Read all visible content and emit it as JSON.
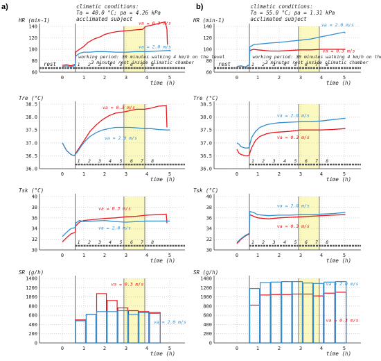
{
  "chart_data": [
    {
      "type": "line",
      "panel": "a",
      "title": "HR (min-1)",
      "ylabel": "HR (min-1)",
      "xlabel": "time (h)",
      "ylim": [
        60,
        140
      ],
      "yticks": [
        60,
        80,
        100,
        120,
        140
      ],
      "xlim": [
        0,
        5
      ],
      "xticks": [
        0,
        1,
        2,
        3,
        4,
        5
      ],
      "conditions": [
        "climatic conditions:",
        "Ta = 40.0 °C;  pa = 4.26 kPa",
        "acclimated subject"
      ],
      "period_note": [
        "working period: 30 minutes walking 4 km/h on the level",
        "3 minutes rest inside climatic chamber"
      ],
      "rest_label": "rest",
      "period_numbers": [
        "1",
        "2",
        "3",
        "4",
        "5",
        "6",
        "7",
        "8"
      ],
      "highlight": [
        2.9,
        3.9
      ],
      "series": [
        {
          "name": "va = 0.3 m/s",
          "color": "#e8141b",
          "x": [
            0,
            0.2,
            0.4,
            0.6,
            0.62,
            0.8,
            1.0,
            1.2,
            1.5,
            1.8,
            2.0,
            2.3,
            2.6,
            2.9,
            3.2,
            3.5,
            3.8,
            3.95,
            4.2,
            4.5,
            4.8,
            4.88,
            4.9
          ],
          "y": [
            72,
            73,
            71,
            74,
            95,
            100,
            105,
            112,
            118,
            122,
            126,
            129,
            131,
            132,
            133,
            134,
            135,
            140,
            142,
            145,
            148,
            135,
            108
          ]
        },
        {
          "name": "va = 2.0 m/s",
          "color": "#2f8fcf",
          "x": [
            0,
            0.2,
            0.4,
            0.6,
            0.62,
            0.8,
            1.0,
            1.3,
            1.6,
            2.0,
            2.5,
            3.0,
            3.5,
            4.0,
            4.5,
            5.0,
            5.05
          ],
          "y": [
            70,
            71,
            69,
            72,
            88,
            93,
            95,
            95,
            96,
            96,
            95,
            95,
            96,
            96,
            97,
            98,
            97
          ]
        }
      ]
    },
    {
      "type": "line",
      "panel": "a",
      "title": "Tre (°C)",
      "ylabel": "Tre (°C)",
      "xlabel": "time (h)",
      "ylim": [
        36.0,
        38.5
      ],
      "yticks": [
        36.0,
        36.5,
        37.0,
        37.5,
        38.0,
        38.5
      ],
      "xlim": [
        0,
        5
      ],
      "xticks": [
        0,
        1,
        2,
        3,
        4,
        5
      ],
      "period_numbers": [
        "1",
        "2",
        "3",
        "4",
        "5",
        "6",
        "7",
        "8"
      ],
      "highlight": [
        2.9,
        3.9
      ],
      "series": [
        {
          "name": "va = 0.3 m/s",
          "color": "#e8141b",
          "x": [
            0,
            0.1,
            0.2,
            0.4,
            0.55,
            0.6,
            0.7,
            0.9,
            1.1,
            1.3,
            1.6,
            1.9,
            2.2,
            2.5,
            2.9,
            3.2,
            3.5,
            3.9,
            4.2,
            4.5,
            4.85,
            4.88
          ],
          "y": [
            37.0,
            36.85,
            36.7,
            36.55,
            36.5,
            36.55,
            36.7,
            36.95,
            37.2,
            37.45,
            37.7,
            37.9,
            38.05,
            38.15,
            38.2,
            38.25,
            38.3,
            38.3,
            38.35,
            38.42,
            38.45,
            37.6
          ]
        },
        {
          "name": "va = 2.0 m/s",
          "color": "#2f8fcf",
          "x": [
            0,
            0.1,
            0.2,
            0.4,
            0.55,
            0.6,
            0.7,
            0.9,
            1.1,
            1.3,
            1.6,
            1.9,
            2.2,
            2.5,
            2.9,
            3.2,
            3.5,
            3.9,
            4.2,
            4.5,
            4.85,
            5.0
          ],
          "y": [
            37.0,
            36.85,
            36.7,
            36.55,
            36.5,
            36.55,
            36.65,
            36.9,
            37.1,
            37.25,
            37.4,
            37.5,
            37.55,
            37.6,
            37.6,
            37.6,
            37.58,
            37.55,
            37.55,
            37.52,
            37.5,
            37.5
          ]
        }
      ]
    },
    {
      "type": "line",
      "panel": "a",
      "title": "Tsk (°C)",
      "ylabel": "Tsk (°C)",
      "xlabel": "time (h)",
      "ylim": [
        30,
        40
      ],
      "yticks": [
        30,
        32,
        34,
        36,
        38,
        40
      ],
      "xlim": [
        0,
        5
      ],
      "xticks": [
        0,
        1,
        2,
        3,
        4,
        5
      ],
      "period_numbers": [
        "1",
        "2",
        "3",
        "4",
        "5",
        "6",
        "7",
        "8"
      ],
      "highlight": [
        2.9,
        3.9
      ],
      "series": [
        {
          "name": "va = 0.3 m/s",
          "color": "#e8141b",
          "x": [
            0,
            0.2,
            0.4,
            0.6,
            0.62,
            0.8,
            1.0,
            1.5,
            2.0,
            2.5,
            3.0,
            3.5,
            4.0,
            4.5,
            4.85,
            4.88
          ],
          "y": [
            31.5,
            32.3,
            33.0,
            33.3,
            34.5,
            35.2,
            35.5,
            35.7,
            35.9,
            36.0,
            36.2,
            36.3,
            36.5,
            36.6,
            36.7,
            35.0
          ]
        },
        {
          "name": "va = 2.0 m/s",
          "color": "#2f8fcf",
          "x": [
            0,
            0.2,
            0.4,
            0.6,
            0.62,
            0.8,
            1.0,
            1.5,
            2.0,
            2.5,
            3.0,
            3.5,
            4.0,
            4.5,
            5.0
          ],
          "y": [
            32.5,
            33.3,
            34.0,
            34.2,
            35.0,
            35.5,
            35.3,
            35.4,
            35.5,
            35.3,
            35.2,
            35.3,
            35.4,
            35.4,
            35.4
          ]
        }
      ]
    },
    {
      "type": "bar",
      "panel": "a",
      "title": "SR (g/h)",
      "ylabel": "SR (g/h)",
      "xlabel": "time (h)",
      "ylim": [
        0,
        1400
      ],
      "yticks": [
        0,
        200,
        400,
        600,
        800,
        1000,
        1200,
        1400
      ],
      "xlim": [
        0,
        5
      ],
      "xticks": [
        0,
        1,
        2,
        3,
        4,
        5
      ],
      "highlight": [
        2.9,
        3.9
      ],
      "bins": [
        [
          0.6,
          1.1
        ],
        [
          1.1,
          1.6
        ],
        [
          1.6,
          2.1
        ],
        [
          2.1,
          2.6
        ],
        [
          2.6,
          3.1
        ],
        [
          3.1,
          3.6
        ],
        [
          3.6,
          4.1
        ],
        [
          4.1,
          4.6
        ]
      ],
      "series": [
        {
          "name": "va = 0.3 m/s",
          "color": "#e8141b",
          "values": [
            500,
            620,
            1070,
            920,
            760,
            700,
            680,
            660
          ]
        },
        {
          "name": "va = 2.0 m/s",
          "color": "#2f8fcf",
          "values": [
            480,
            620,
            680,
            680,
            700,
            620,
            660,
            640
          ]
        }
      ]
    },
    {
      "type": "line",
      "panel": "b",
      "title": "HR (min-1)",
      "ylabel": "HR (min-1)",
      "xlabel": "time (h)",
      "ylim": [
        60,
        140
      ],
      "yticks": [
        60,
        80,
        100,
        120,
        140
      ],
      "xlim": [
        0,
        5
      ],
      "xticks": [
        0,
        1,
        2,
        3,
        4,
        5
      ],
      "conditions": [
        "climatic conditions:",
        "Ta = 55.0 °C;  pa = 1.31 kPa",
        "acclimated subject"
      ],
      "period_note": [
        "working period: 30 minutes walking 4 km/h on the level",
        "3 minutes rest inside climatic chamber"
      ],
      "rest_label": "rest",
      "period_numbers": [
        "1",
        "2",
        "3",
        "4",
        "5",
        "6",
        "7",
        "8"
      ],
      "highlight": [
        2.9,
        3.9
      ],
      "series": [
        {
          "name": "va = 0.3 m/s",
          "color": "#e8141b",
          "x": [
            0,
            0.2,
            0.4,
            0.6,
            0.62,
            0.8,
            1.0,
            1.3,
            1.6,
            2.0,
            2.5,
            3.0,
            3.5,
            4.0,
            4.5,
            5.0,
            5.05
          ],
          "y": [
            70,
            71,
            69,
            73,
            98,
            100,
            99,
            98,
            97,
            97,
            98,
            99,
            99,
            100,
            100,
            100,
            100
          ]
        },
        {
          "name": "va = 2.0 m/s",
          "color": "#2f8fcf",
          "x": [
            0,
            0.2,
            0.4,
            0.6,
            0.62,
            0.8,
            1.0,
            1.3,
            1.6,
            2.0,
            2.5,
            3.0,
            3.5,
            4.0,
            4.5,
            5.0,
            5.05
          ],
          "y": [
            70,
            71,
            69,
            73,
            104,
            108,
            109,
            110,
            111,
            112,
            114,
            116,
            118,
            122,
            126,
            130,
            128
          ]
        }
      ]
    },
    {
      "type": "line",
      "panel": "b",
      "title": "Tre (°C)",
      "ylabel": "Tre (°C)",
      "xlabel": "time (h)",
      "ylim": [
        36.0,
        38.5
      ],
      "yticks": [
        36.0,
        36.5,
        37.0,
        37.5,
        38.0,
        38.5
      ],
      "xlim": [
        0,
        5
      ],
      "xticks": [
        0,
        1,
        2,
        3,
        4,
        5
      ],
      "period_numbers": [
        "1",
        "2",
        "3",
        "4",
        "5",
        "6",
        "7",
        "8"
      ],
      "highlight": [
        2.9,
        3.9
      ],
      "series": [
        {
          "name": "va = 0.3 m/s",
          "color": "#e8141b",
          "x": [
            0,
            0.1,
            0.2,
            0.4,
            0.55,
            0.6,
            0.7,
            0.9,
            1.1,
            1.4,
            1.7,
            2.0,
            2.5,
            3.0,
            3.5,
            4.0,
            4.5,
            5.0,
            5.05
          ],
          "y": [
            36.75,
            36.6,
            36.55,
            36.5,
            36.5,
            36.55,
            36.8,
            37.1,
            37.25,
            37.35,
            37.4,
            37.42,
            37.45,
            37.5,
            37.5,
            37.5,
            37.52,
            37.55,
            37.55
          ]
        },
        {
          "name": "va = 2.0 m/s",
          "color": "#2f8fcf",
          "x": [
            0,
            0.1,
            0.2,
            0.4,
            0.55,
            0.6,
            0.7,
            0.9,
            1.1,
            1.4,
            1.7,
            2.0,
            2.5,
            3.0,
            3.5,
            4.0,
            4.5,
            5.0,
            5.05
          ],
          "y": [
            37.0,
            36.95,
            36.85,
            36.8,
            36.8,
            36.85,
            37.2,
            37.45,
            37.6,
            37.7,
            37.75,
            37.78,
            37.8,
            37.82,
            37.82,
            37.85,
            37.9,
            37.95,
            37.95
          ]
        }
      ]
    },
    {
      "type": "line",
      "panel": "b",
      "title": "Tsk (°C)",
      "ylabel": "Tsk (°C)",
      "xlabel": "time (h)",
      "ylim": [
        30,
        40
      ],
      "yticks": [
        30,
        32,
        34,
        36,
        38,
        40
      ],
      "xlim": [
        0,
        5
      ],
      "xticks": [
        0,
        1,
        2,
        3,
        4,
        5
      ],
      "period_numbers": [
        "1",
        "2",
        "3",
        "4",
        "5",
        "6",
        "7",
        "8"
      ],
      "highlight": [
        2.9,
        3.9
      ],
      "series": [
        {
          "name": "va = 0.3 m/s",
          "color": "#e8141b",
          "x": [
            0,
            0.2,
            0.4,
            0.6,
            0.62,
            0.8,
            1.0,
            1.5,
            2.0,
            2.5,
            3.0,
            3.5,
            4.0,
            4.5,
            5.0,
            5.05
          ],
          "y": [
            31.2,
            32.0,
            32.6,
            33.0,
            36.6,
            36.3,
            36.0,
            35.8,
            36.0,
            36.1,
            36.2,
            36.3,
            36.4,
            36.5,
            36.6,
            36.6
          ]
        },
        {
          "name": "va = 2.0 m/s",
          "color": "#2f8fcf",
          "x": [
            0,
            0.2,
            0.4,
            0.6,
            0.62,
            0.8,
            1.0,
            1.5,
            2.0,
            2.5,
            3.0,
            3.5,
            4.0,
            4.5,
            5.0,
            5.05
          ],
          "y": [
            31.4,
            32.1,
            32.7,
            33.1,
            37.2,
            37.0,
            36.6,
            36.4,
            36.5,
            36.5,
            36.6,
            36.6,
            36.7,
            36.8,
            37.0,
            37.0
          ]
        }
      ]
    },
    {
      "type": "bar",
      "panel": "b",
      "title": "SR (g/h)",
      "ylabel": "SR (g/h)",
      "xlabel": "time (h)",
      "ylim": [
        0,
        1400
      ],
      "yticks": [
        0,
        200,
        400,
        600,
        800,
        1000,
        1200,
        1400
      ],
      "xlim": [
        0,
        5
      ],
      "xticks": [
        0,
        1,
        2,
        3,
        4,
        5
      ],
      "highlight": [
        2.9,
        3.9
      ],
      "bins": [
        [
          0.6,
          1.1
        ],
        [
          1.1,
          1.6
        ],
        [
          1.6,
          2.1
        ],
        [
          2.1,
          2.6
        ],
        [
          2.6,
          3.1
        ],
        [
          3.1,
          3.6
        ],
        [
          3.6,
          4.1
        ],
        [
          4.1,
          4.6
        ],
        [
          4.6,
          5.1
        ]
      ],
      "series": [
        {
          "name": "va = 0.3 m/s",
          "color": "#e8141b",
          "values": [
            820,
            1040,
            1050,
            1050,
            1060,
            1060,
            1020,
            1080,
            1100
          ]
        },
        {
          "name": "va = 2.0 m/s",
          "color": "#2f8fcf",
          "values": [
            1180,
            1310,
            1320,
            1330,
            1330,
            1300,
            1290,
            1320,
            1330
          ]
        }
      ]
    }
  ],
  "panel_labels": [
    "a)",
    "b)"
  ],
  "colors": {
    "red": "#e8141b",
    "blue": "#2f8fcf",
    "highlight": "#fbf8c0"
  }
}
